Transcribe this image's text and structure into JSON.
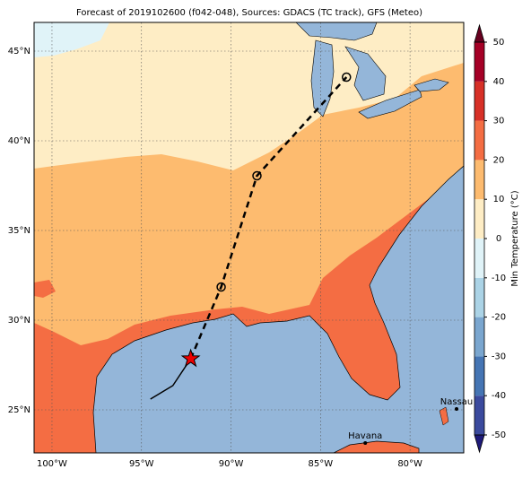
{
  "title": "Forecast of 2019102600 (f042-048), Sources: GDACS (TC track), GFS (Meteo)",
  "map": {
    "lon_range": [
      -101,
      -77
    ],
    "lat_range": [
      22.6,
      46.6
    ],
    "lon_ticks": [
      {
        "value": -100,
        "label": "100°W"
      },
      {
        "value": -95,
        "label": "95°W"
      },
      {
        "value": -90,
        "label": "90°W"
      },
      {
        "value": -85,
        "label": "85°W"
      },
      {
        "value": -80,
        "label": "80°W"
      }
    ],
    "lat_ticks": [
      {
        "value": 25,
        "label": "25°N"
      },
      {
        "value": 30,
        "label": "30°N"
      },
      {
        "value": 35,
        "label": "35°N"
      },
      {
        "value": 40,
        "label": "40°N"
      },
      {
        "value": 45,
        "label": "45°N"
      }
    ]
  },
  "track": {
    "observed": {
      "lon": [
        -94.5,
        -93.25,
        -92.25
      ],
      "lat": [
        25.6,
        26.35,
        27.85
      ]
    },
    "forecast": {
      "lon": [
        -92.25,
        -90.55,
        -88.55,
        -83.55
      ],
      "lat": [
        27.85,
        31.85,
        38.05,
        43.55
      ]
    }
  },
  "cities": [
    {
      "name": "Havana",
      "lon": -82.5,
      "lat": 23.15
    },
    {
      "name": "Nassau",
      "lon": -77.4,
      "lat": 25.05
    }
  ],
  "colorbar": {
    "label": "Min Temperature (°C)",
    "ticks": [
      -50,
      -40,
      -30,
      -20,
      -10,
      0,
      10,
      20,
      30,
      40,
      50
    ],
    "colors": [
      "#3b4a9e",
      "#4575b4",
      "#7aa6cf",
      "#abd3e6",
      "#e0f3f8",
      "#feedc5",
      "#fdbb6f",
      "#f46d43",
      "#d73027",
      "#a50026"
    ],
    "under": "#1e1a7a",
    "over": "#67001f"
  }
}
